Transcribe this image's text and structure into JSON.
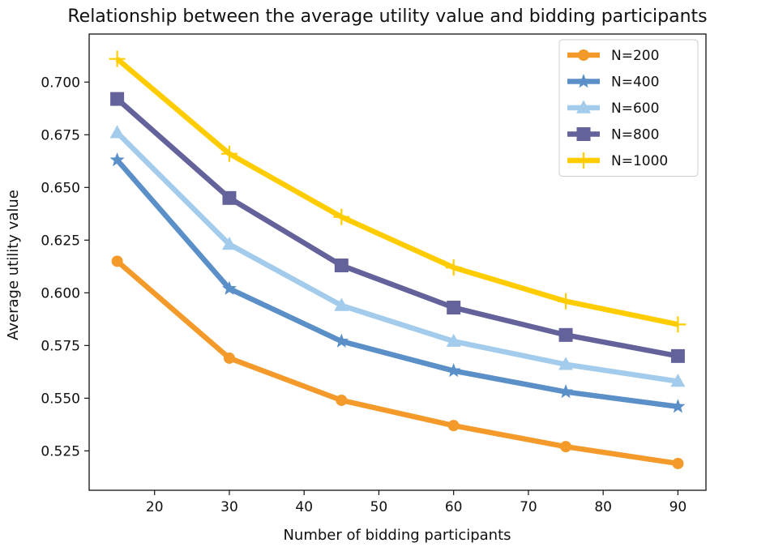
{
  "chart_data": {
    "type": "line",
    "title": "Relationship between the average utility value and bidding participants",
    "xlabel": "Number of bidding participants",
    "ylabel": "Average utility value",
    "x": [
      15,
      30,
      45,
      60,
      75,
      90
    ],
    "xlim": [
      11.25,
      93.75
    ],
    "ylim": [
      0.5063,
      0.7228
    ],
    "xticks": [
      20,
      30,
      40,
      50,
      60,
      70,
      80,
      90
    ],
    "yticks": [
      0.525,
      0.55,
      0.575,
      0.6,
      0.625,
      0.65,
      0.675,
      0.7
    ],
    "grid": false,
    "legend_position": "top-right",
    "series": [
      {
        "name": "N=200",
        "color": "#F39A2B",
        "marker": "circle",
        "values": [
          0.615,
          0.569,
          0.549,
          0.537,
          0.527,
          0.519
        ]
      },
      {
        "name": "N=400",
        "color": "#5B8FC8",
        "marker": "star",
        "values": [
          0.663,
          0.602,
          0.577,
          0.563,
          0.553,
          0.546
        ]
      },
      {
        "name": "N=600",
        "color": "#A2CBEC",
        "marker": "triangle",
        "values": [
          0.676,
          0.623,
          0.594,
          0.577,
          0.566,
          0.558
        ]
      },
      {
        "name": "N=800",
        "color": "#63629A",
        "marker": "square",
        "values": [
          0.692,
          0.645,
          0.613,
          0.593,
          0.58,
          0.57
        ]
      },
      {
        "name": "N=1000",
        "color": "#FFCC00",
        "marker": "plus",
        "values": [
          0.711,
          0.666,
          0.636,
          0.612,
          0.596,
          0.585
        ]
      }
    ]
  }
}
